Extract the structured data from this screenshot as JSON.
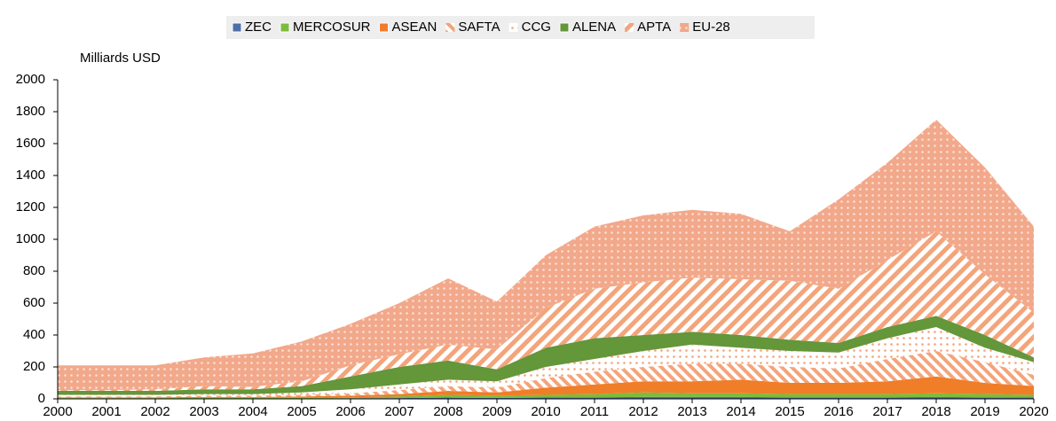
{
  "chart_data": {
    "type": "stacked_area",
    "y_label": "Milliards USD",
    "categories": [
      "2000",
      "2001",
      "2002",
      "2003",
      "2004",
      "2005",
      "2006",
      "2007",
      "2008",
      "2009",
      "2010",
      "2011",
      "2012",
      "2013",
      "2014",
      "2015",
      "2016",
      "2017",
      "2018",
      "2019",
      "2020"
    ],
    "ylim": [
      0,
      2000
    ],
    "yticks": [
      0,
      200,
      400,
      600,
      800,
      1000,
      1200,
      1400,
      1600,
      1800,
      2000
    ],
    "legend": "top",
    "series": [
      {
        "name": "ZEC",
        "color": "#4f6fa8",
        "pattern": "solid",
        "values": [
          2,
          2,
          2,
          2,
          2,
          3,
          4,
          5,
          8,
          6,
          8,
          10,
          12,
          12,
          12,
          10,
          10,
          10,
          12,
          10,
          8
        ]
      },
      {
        "name": "MERCOSUR",
        "color": "#7dbb3c",
        "pattern": "solid",
        "values": [
          3,
          3,
          3,
          4,
          4,
          4,
          6,
          10,
          17,
          14,
          17,
          20,
          28,
          23,
          23,
          20,
          20,
          20,
          23,
          20,
          17
        ]
      },
      {
        "name": "ASEAN",
        "color": "#f07d28",
        "pattern": "solid",
        "values": [
          5,
          5,
          5,
          6,
          6,
          8,
          10,
          15,
          25,
          20,
          45,
          60,
          70,
          75,
          85,
          70,
          70,
          80,
          105,
          70,
          55
        ]
      },
      {
        "name": "SAFTA",
        "color": "#f4a47a",
        "pattern": "stripes-back",
        "values": [
          5,
          5,
          5,
          8,
          8,
          10,
          15,
          25,
          30,
          30,
          60,
          80,
          90,
          110,
          100,
          100,
          90,
          140,
          160,
          130,
          70
        ]
      },
      {
        "name": "CCG",
        "color": "#f4a47a",
        "pattern": "dots-light",
        "values": [
          10,
          10,
          10,
          10,
          10,
          15,
          25,
          35,
          40,
          40,
          70,
          80,
          100,
          120,
          100,
          100,
          100,
          130,
          150,
          90,
          80
        ]
      },
      {
        "name": "ALENA",
        "color": "#64963a",
        "pattern": "solid",
        "values": [
          25,
          25,
          25,
          30,
          30,
          40,
          80,
          110,
          120,
          75,
          120,
          130,
          100,
          80,
          80,
          70,
          60,
          70,
          70,
          80,
          30
        ]
      },
      {
        "name": "APTA",
        "color": "#f4a47a",
        "pattern": "stripes-fwd",
        "values": [
          5,
          5,
          10,
          20,
          15,
          30,
          70,
          80,
          100,
          125,
          250,
          310,
          330,
          340,
          350,
          370,
          340,
          420,
          530,
          380,
          280
        ]
      },
      {
        "name": "EU-28",
        "color": "#f2a88a",
        "pattern": "dots-dense",
        "values": [
          155,
          155,
          150,
          180,
          210,
          250,
          260,
          320,
          415,
          300,
          330,
          390,
          420,
          425,
          410,
          310,
          560,
          610,
          700,
          670,
          540
        ]
      }
    ]
  }
}
